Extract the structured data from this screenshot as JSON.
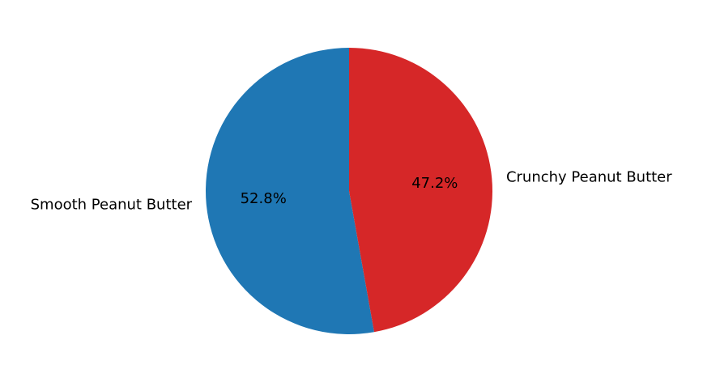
{
  "chart_data": {
    "type": "pie",
    "categories": [
      "Smooth Peanut Butter",
      "Crunchy Peanut Butter"
    ],
    "values": [
      52.8,
      47.2
    ],
    "value_labels": [
      "52.8%",
      "47.2%"
    ],
    "colors": [
      "#1f77b4",
      "#d62728"
    ],
    "start_angle_deg": 90,
    "direction": "counterclockwise",
    "legend": "none",
    "grid": false
  }
}
